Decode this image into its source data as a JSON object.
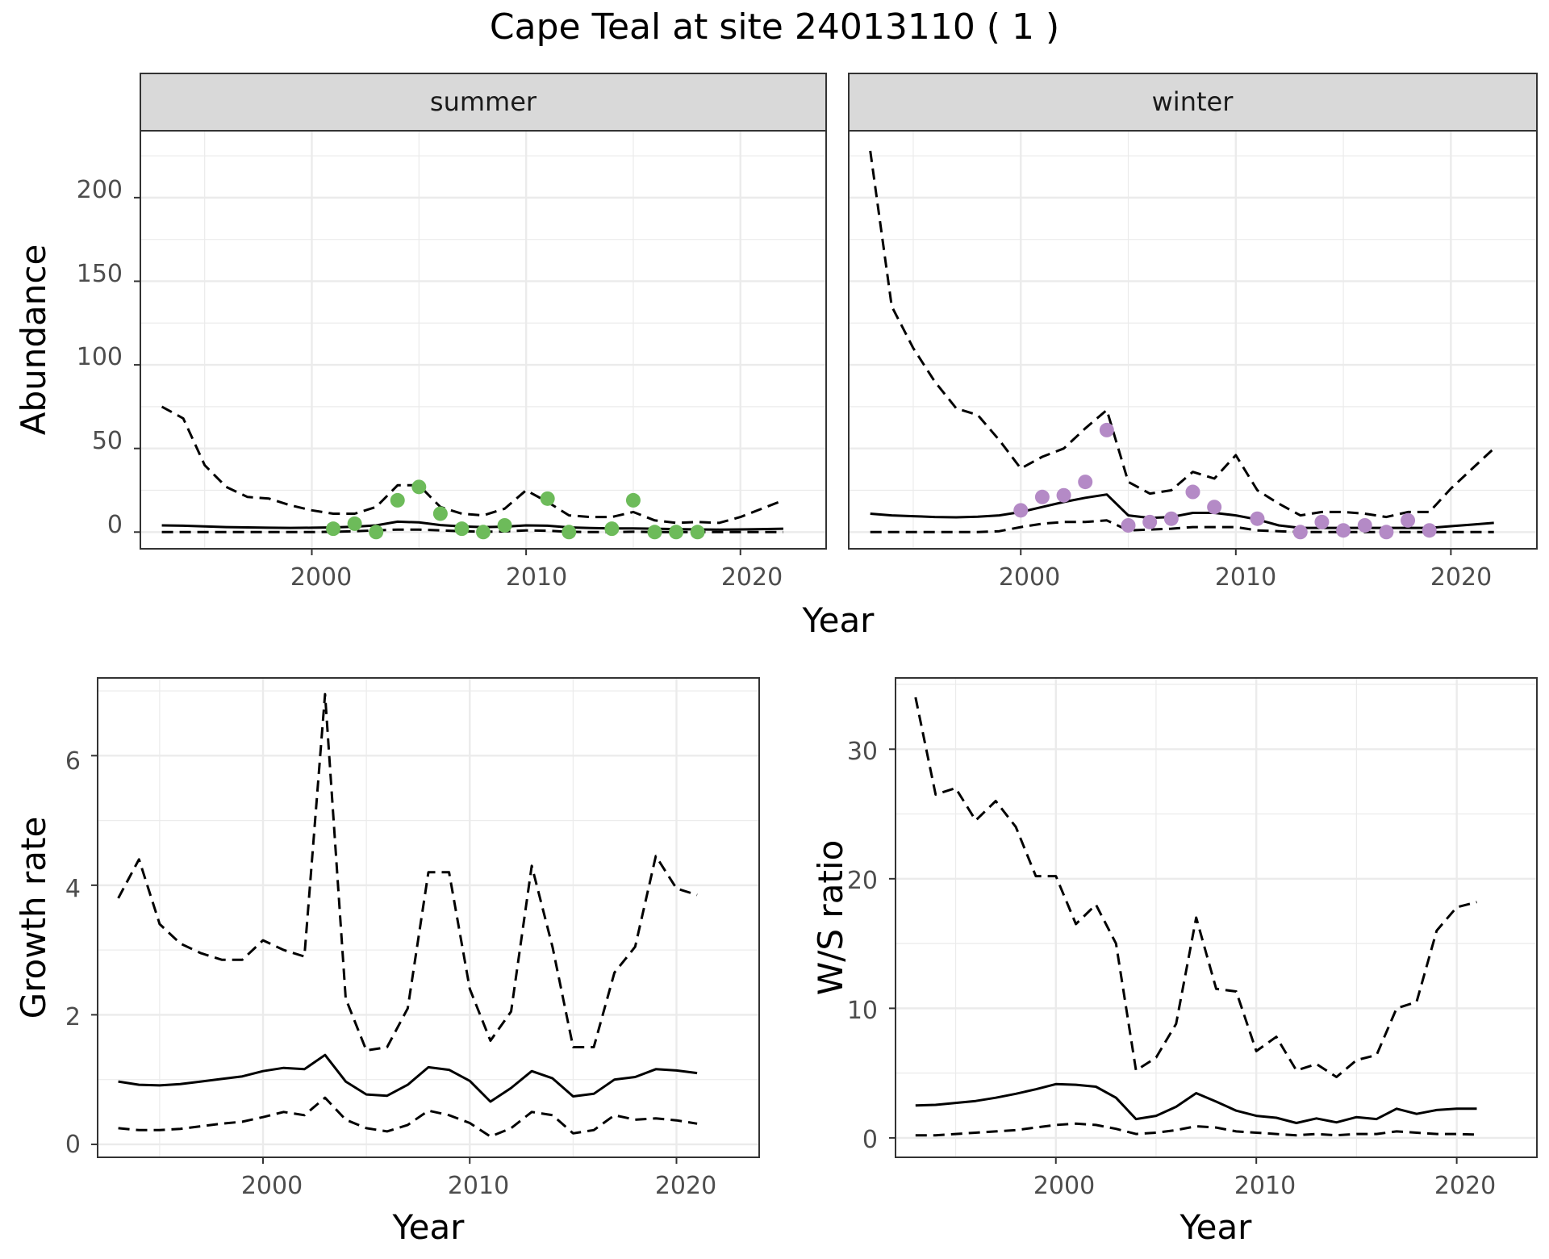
{
  "title": "Cape Teal at site 24013110 ( 1 )",
  "colors": {
    "summer_points": "#6dbb5a",
    "winter_points": "#b48ac6",
    "line": "#000000",
    "grid": "#ebebeb",
    "strip_bg": "#d9d9d9",
    "panel_border": "#333333"
  },
  "labels": {
    "abundance_y": "Abundance",
    "top_x": "Year",
    "growth_y": "Growth rate",
    "growth_x": "Year",
    "ratio_y": "W/S ratio",
    "ratio_x": "Year",
    "strip_summer": "summer",
    "strip_winter": "winter"
  },
  "ticks": {
    "x": [
      "2000",
      "2010",
      "2020"
    ],
    "abundance_y": [
      "0",
      "50",
      "100",
      "150",
      "200"
    ],
    "growth_y": [
      "0",
      "2",
      "4",
      "6"
    ],
    "ratio_y": [
      "0",
      "10",
      "20",
      "30"
    ]
  },
  "chart_data": [
    {
      "type": "line",
      "panel": "summer",
      "xlim": [
        1992,
        2024
      ],
      "ylim": [
        -10,
        240
      ],
      "grid": true,
      "years": [
        1993,
        1994,
        1995,
        1996,
        1997,
        1998,
        1999,
        2000,
        2001,
        2002,
        2003,
        2004,
        2005,
        2006,
        2007,
        2008,
        2009,
        2010,
        2011,
        2012,
        2013,
        2014,
        2015,
        2016,
        2017,
        2018,
        2019,
        2020,
        2021,
        2022
      ],
      "estimate": [
        4,
        3.8,
        3.4,
        3,
        2.8,
        2.6,
        2.5,
        2.6,
        2.8,
        3.2,
        4,
        6.2,
        5.8,
        4.2,
        3.4,
        3,
        3.2,
        4,
        3.8,
        2.8,
        2.4,
        2.2,
        2.2,
        2,
        1.8,
        1.6,
        1.5,
        1.6,
        1.8,
        2
      ],
      "upper": [
        75,
        68,
        40,
        27,
        21,
        20,
        16,
        13,
        11,
        11,
        15,
        28,
        28,
        15,
        11,
        10,
        14,
        25,
        18,
        10,
        9,
        9,
        12,
        7,
        5.5,
        6,
        5.5,
        9,
        14,
        19
      ],
      "lower": [
        0,
        0,
        0,
        0,
        0,
        0,
        0,
        0,
        0.2,
        0.5,
        1,
        1.5,
        1.5,
        1,
        0.5,
        0.2,
        0.4,
        1,
        0.8,
        0.2,
        0,
        0,
        0.2,
        0,
        0,
        0,
        0,
        0,
        0,
        0
      ],
      "observed": {
        "years": [
          2001,
          2002,
          2003,
          2004,
          2005,
          2006,
          2007,
          2008,
          2009,
          2011,
          2012,
          2014,
          2015,
          2016,
          2017,
          2018
        ],
        "values": [
          2,
          5,
          0,
          19,
          27,
          11,
          2,
          0,
          4,
          20,
          0,
          2,
          19,
          0,
          0,
          0
        ]
      }
    },
    {
      "type": "line",
      "panel": "winter",
      "xlim": [
        1992,
        2024
      ],
      "ylim": [
        -10,
        240
      ],
      "grid": true,
      "years": [
        1993,
        1994,
        1995,
        1996,
        1997,
        1998,
        1999,
        2000,
        2001,
        2002,
        2003,
        2004,
        2005,
        2006,
        2007,
        2008,
        2009,
        2010,
        2011,
        2012,
        2013,
        2014,
        2015,
        2016,
        2017,
        2018,
        2019,
        2020,
        2021,
        2022
      ],
      "estimate": [
        11,
        10,
        9.5,
        9,
        8.8,
        9.2,
        10,
        12,
        15,
        18,
        20.5,
        22.5,
        10,
        8.5,
        9,
        11.5,
        11.5,
        10,
        7.5,
        4,
        2.5,
        2.5,
        2.5,
        2.5,
        2.5,
        2.5,
        2.5,
        3.5,
        4.5,
        5.5
      ],
      "upper": [
        228,
        135,
        110,
        90,
        74,
        70,
        55,
        38,
        45,
        50,
        62,
        73,
        30,
        23,
        25,
        36,
        32,
        46,
        25,
        17,
        10,
        12,
        12,
        11,
        9,
        12,
        12,
        26,
        38,
        50
      ],
      "lower": [
        0,
        0,
        0,
        0,
        0,
        0,
        0.5,
        3,
        5,
        6,
        6,
        7,
        1,
        1.5,
        2,
        3,
        3,
        3,
        1,
        0.5,
        0,
        0,
        0,
        0,
        0,
        0,
        0,
        0,
        0,
        0
      ],
      "observed": {
        "years": [
          2000,
          2001,
          2002,
          2003,
          2004,
          2005,
          2006,
          2007,
          2008,
          2009,
          2011,
          2013,
          2014,
          2015,
          2016,
          2017,
          2018,
          2019
        ],
        "values": [
          13,
          21,
          22,
          30,
          61,
          4,
          6,
          8,
          24,
          15,
          8,
          0,
          6,
          1,
          4,
          0,
          7,
          1
        ]
      }
    },
    {
      "type": "line",
      "panel": "growth",
      "xlim": [
        1992,
        2024
      ],
      "ylim": [
        -0.2,
        7.2
      ],
      "grid": true,
      "years": [
        1993,
        1994,
        1995,
        1996,
        1997,
        1998,
        1999,
        2000,
        2001,
        2002,
        2003,
        2004,
        2005,
        2006,
        2007,
        2008,
        2009,
        2010,
        2011,
        2012,
        2013,
        2014,
        2015,
        2016,
        2017,
        2018,
        2019,
        2020,
        2021
      ],
      "estimate": [
        0.97,
        0.92,
        0.91,
        0.93,
        0.97,
        1.01,
        1.05,
        1.13,
        1.18,
        1.16,
        1.38,
        0.97,
        0.77,
        0.75,
        0.92,
        1.19,
        1.15,
        0.98,
        0.66,
        0.87,
        1.13,
        1.02,
        0.74,
        0.78,
        1,
        1.04,
        1.16,
        1.14,
        1.1
      ],
      "upper": [
        3.8,
        4.4,
        3.4,
        3.1,
        2.95,
        2.85,
        2.85,
        3.15,
        3.0,
        2.9,
        6.95,
        2.25,
        1.45,
        1.5,
        2.1,
        4.2,
        4.2,
        2.4,
        1.6,
        2.05,
        4.3,
        3.05,
        1.5,
        1.5,
        2.65,
        3.05,
        4.45,
        3.95,
        3.85
      ],
      "lower": [
        0.25,
        0.22,
        0.22,
        0.24,
        0.28,
        0.32,
        0.35,
        0.42,
        0.5,
        0.45,
        0.72,
        0.38,
        0.25,
        0.2,
        0.3,
        0.52,
        0.45,
        0.33,
        0.12,
        0.25,
        0.5,
        0.45,
        0.17,
        0.22,
        0.45,
        0.38,
        0.4,
        0.37,
        0.32
      ]
    },
    {
      "type": "line",
      "panel": "ratio",
      "xlim": [
        1992,
        2024
      ],
      "ylim": [
        -1.5,
        35.5
      ],
      "grid": true,
      "years": [
        1993,
        1994,
        1995,
        1996,
        1997,
        1998,
        1999,
        2000,
        2001,
        2002,
        2003,
        2004,
        2005,
        2006,
        2007,
        2008,
        2009,
        2010,
        2011,
        2012,
        2013,
        2014,
        2015,
        2016,
        2017,
        2018,
        2019,
        2020,
        2021
      ],
      "estimate": [
        2.5,
        2.55,
        2.7,
        2.85,
        3.1,
        3.4,
        3.75,
        4.15,
        4.1,
        3.95,
        3.1,
        1.45,
        1.7,
        2.4,
        3.45,
        2.8,
        2.1,
        1.7,
        1.55,
        1.15,
        1.5,
        1.2,
        1.6,
        1.45,
        2.25,
        1.85,
        2.15,
        2.25,
        2.25
      ],
      "upper": [
        34,
        26.5,
        27,
        24.5,
        26,
        24,
        20.2,
        20.2,
        16.5,
        18,
        15,
        5.2,
        6.2,
        8.8,
        17,
        11.5,
        11.3,
        6.7,
        7.8,
        5.2,
        5.7,
        4.7,
        6,
        6.4,
        10,
        10.5,
        16,
        17.8,
        18.2
      ],
      "lower": [
        0.2,
        0.2,
        0.3,
        0.4,
        0.5,
        0.6,
        0.8,
        1.0,
        1.1,
        1.0,
        0.7,
        0.3,
        0.4,
        0.6,
        0.9,
        0.8,
        0.5,
        0.4,
        0.3,
        0.2,
        0.3,
        0.2,
        0.3,
        0.3,
        0.5,
        0.4,
        0.3,
        0.3,
        0.25
      ]
    }
  ]
}
